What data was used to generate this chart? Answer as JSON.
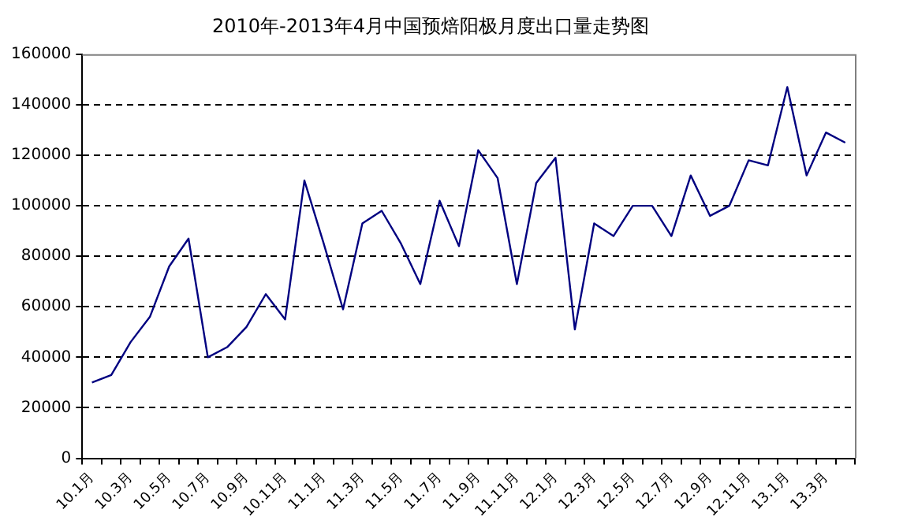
{
  "chart_data": {
    "type": "line",
    "title": "2010年-2013年4月中国预焙阳极月度出口量走势图",
    "categories": [
      "10.1月",
      null,
      "10.3月",
      null,
      "10.5月",
      null,
      "10.7月",
      null,
      "10.9月",
      null,
      "10.11月",
      null,
      "11.1月",
      null,
      "11.3月",
      null,
      "11.5月",
      null,
      "11.7月",
      null,
      "11.9月",
      null,
      "11.11月",
      null,
      "12.1月",
      null,
      "12.3月",
      null,
      "12.5月",
      null,
      "12.7月",
      null,
      "12.9月",
      null,
      "12.11月",
      null,
      "13.1月",
      null,
      "13.3月",
      null
    ],
    "series": [
      {
        "color": "#000080",
        "values": [
          30000,
          33000,
          46000,
          56000,
          76000,
          87000,
          40000,
          44000,
          52000,
          65000,
          55000,
          110000,
          85000,
          59000,
          93000,
          98000,
          85000,
          69000,
          102000,
          84000,
          122000,
          111000,
          69000,
          109000,
          119000,
          51000,
          93000,
          88000,
          100000,
          100000,
          88000,
          112000,
          96000,
          100000,
          118000,
          116000,
          147000,
          112000,
          129000,
          125000
        ]
      }
    ],
    "ylim": [
      0,
      160000
    ],
    "yticks": [
      0,
      20000,
      40000,
      60000,
      80000,
      100000,
      120000,
      140000,
      160000
    ],
    "grid": "y",
    "legend": false,
    "marker": "none",
    "line_style": "solid"
  }
}
